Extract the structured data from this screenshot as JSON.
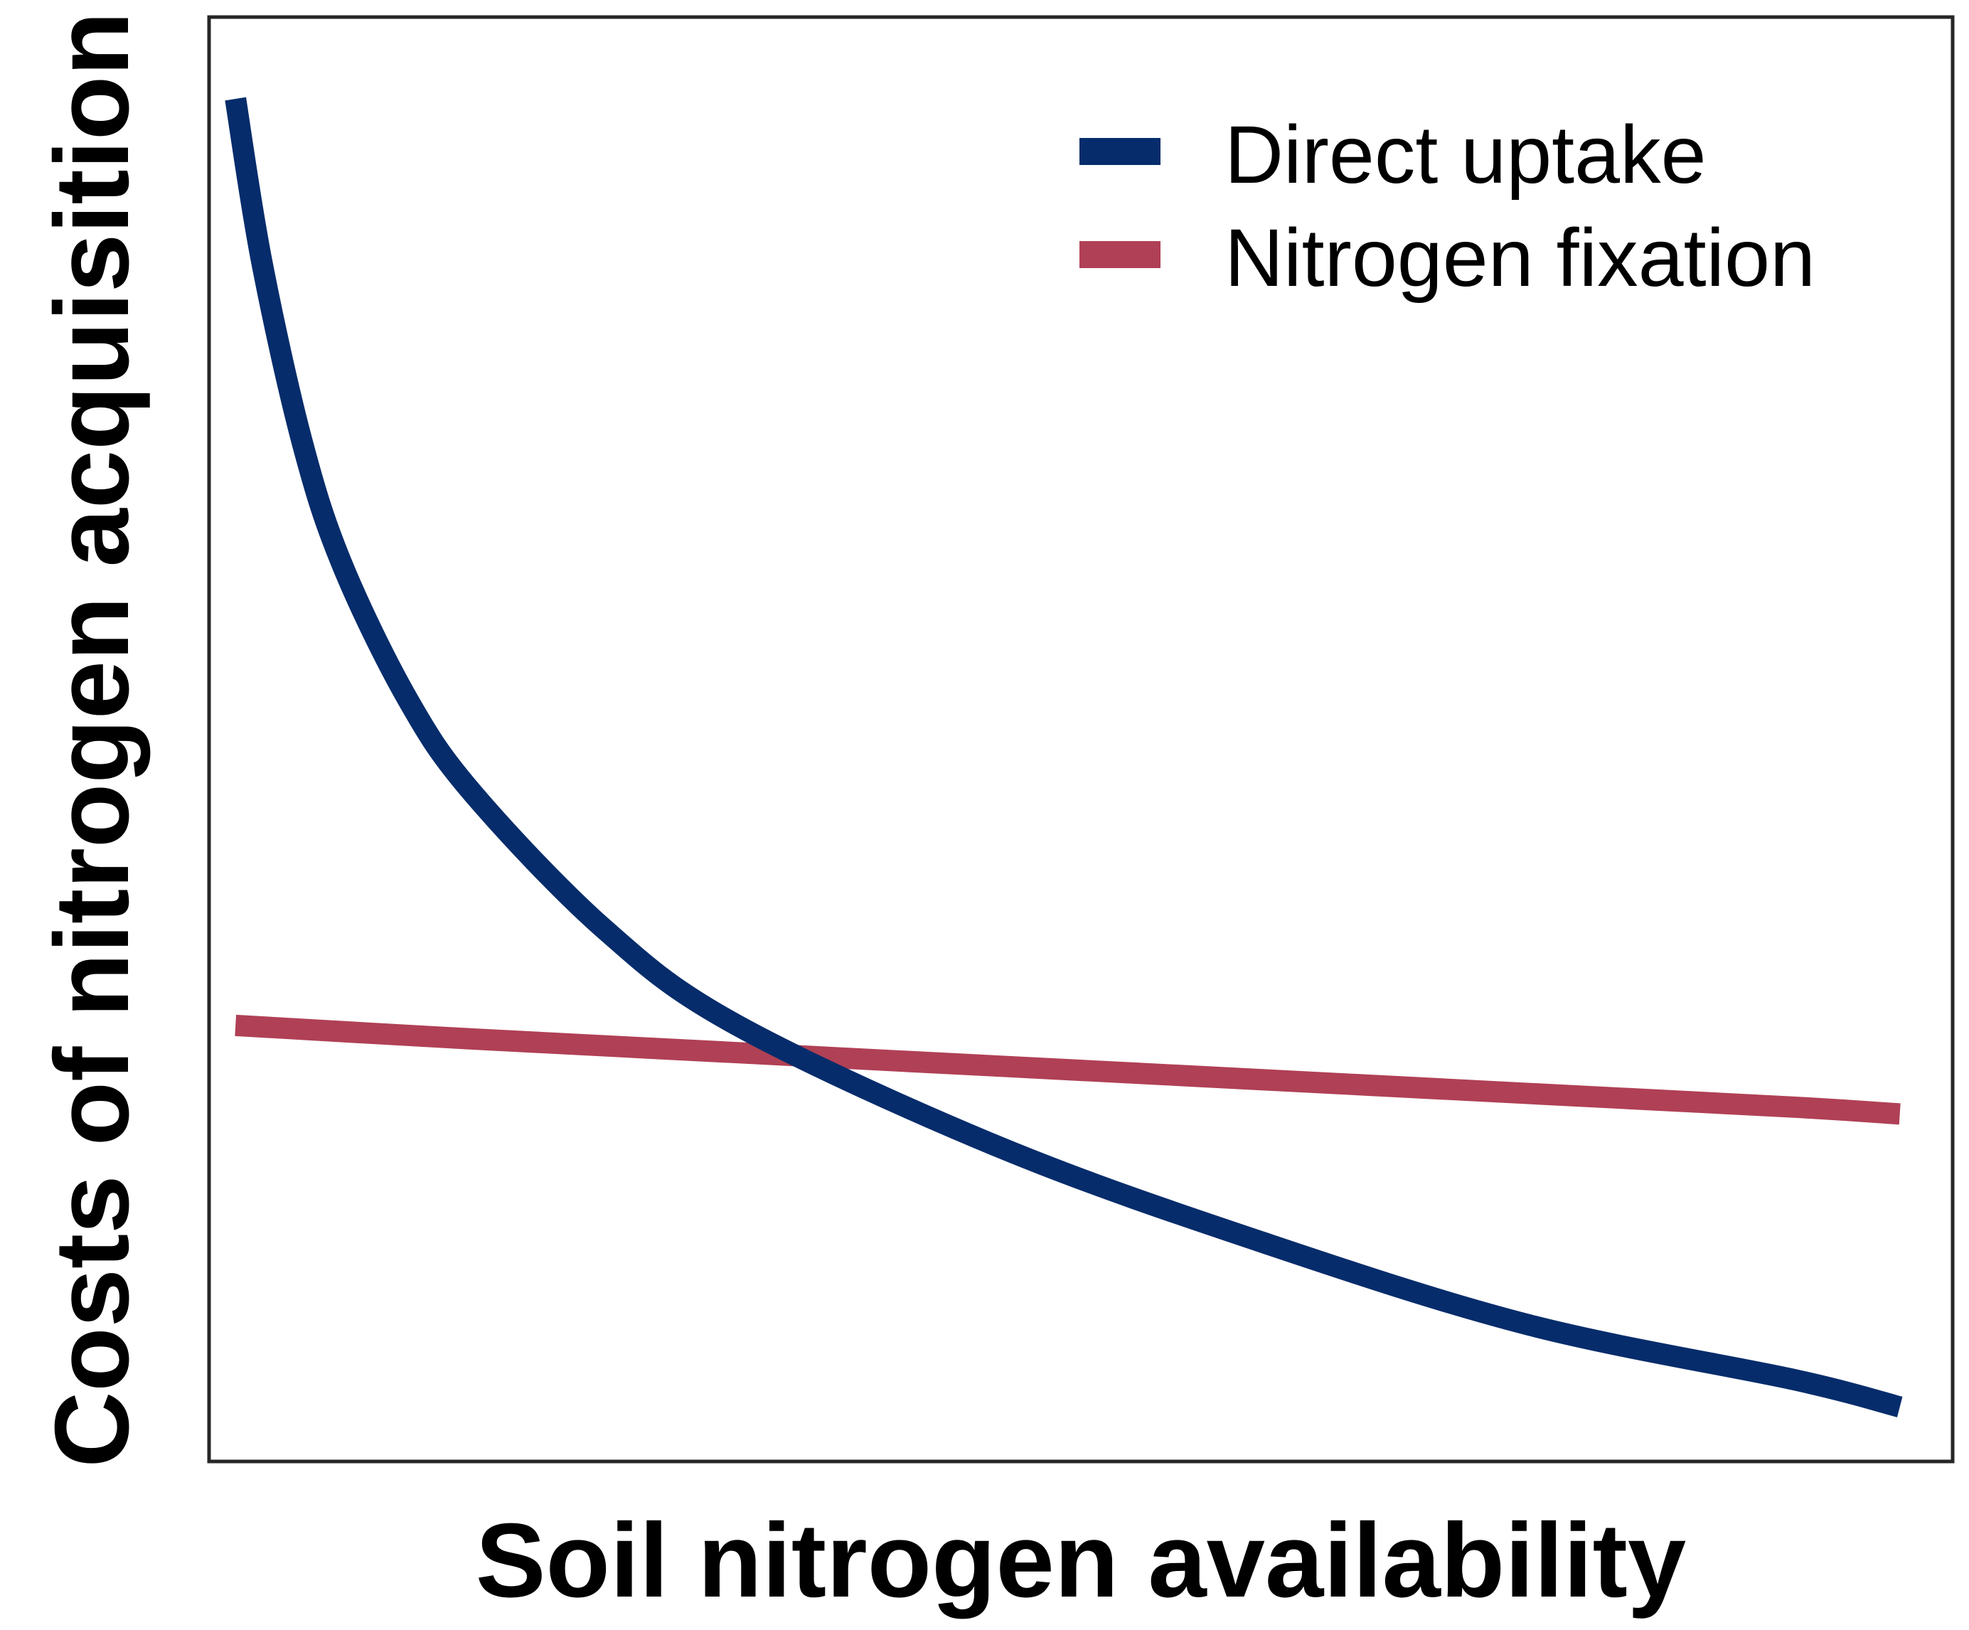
{
  "chart_data": {
    "type": "line",
    "title": "",
    "xlabel": "Soil nitrogen availability",
    "ylabel": "Costs of nitrogen acquisition",
    "xticks": [],
    "yticks": [],
    "xlim": [
      0,
      6.6
    ],
    "ylim": [
      0,
      10.6
    ],
    "grid": false,
    "legend_position": "top-right",
    "series": [
      {
        "name": "Direct uptake",
        "color": "#062c6b",
        "x": [
          0.1,
          0.2,
          0.35,
          0.5,
          0.75,
          1.0,
          1.5,
          2.0,
          3.0,
          4.0,
          5.0,
          6.0,
          6.4
        ],
        "y": [
          10.0,
          8.8,
          7.5,
          6.6,
          5.6,
          4.9,
          3.9,
          3.2,
          2.3,
          1.6,
          1.0,
          0.6,
          0.4
        ]
      },
      {
        "name": "Nitrogen fixation",
        "color": "#b04055",
        "x": [
          0.1,
          1.0,
          2.0,
          3.0,
          4.0,
          5.0,
          6.0,
          6.4
        ],
        "y": [
          3.2,
          3.1,
          3.0,
          2.9,
          2.8,
          2.7,
          2.6,
          2.55
        ]
      }
    ]
  }
}
